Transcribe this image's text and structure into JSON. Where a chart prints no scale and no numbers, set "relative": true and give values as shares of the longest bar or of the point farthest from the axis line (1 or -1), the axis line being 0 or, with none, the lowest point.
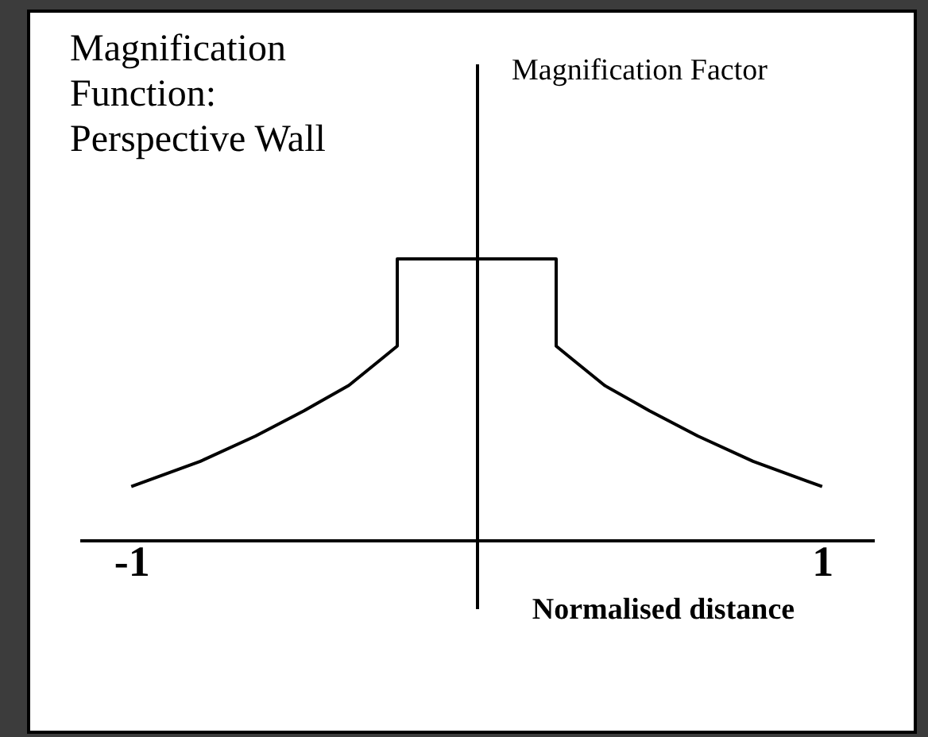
{
  "chart_data": {
    "type": "line",
    "title": "Magnification Function: Perspective Wall",
    "xlabel": "Normalised distance",
    "annotations": [
      "Magnification Factor"
    ],
    "relative": true,
    "series": [
      {
        "color": "#000000",
        "x": [
          -1,
          -0.8,
          -0.64,
          -0.5,
          -0.37,
          -0.28,
          -0.23,
          -0.23,
          0.23,
          0.23,
          0.28,
          0.37,
          0.5,
          0.64,
          0.8,
          1
        ],
        "values": [
          0.19,
          0.28,
          0.37,
          0.46,
          0.55,
          0.64,
          0.69,
          1,
          1,
          0.69,
          0.64,
          0.55,
          0.46,
          0.37,
          0.28,
          0.19
        ]
      }
    ],
    "xlim": [
      -1.15,
      1.15
    ],
    "xticks": [
      -1,
      1
    ],
    "grid": false,
    "line_style": "solid"
  }
}
